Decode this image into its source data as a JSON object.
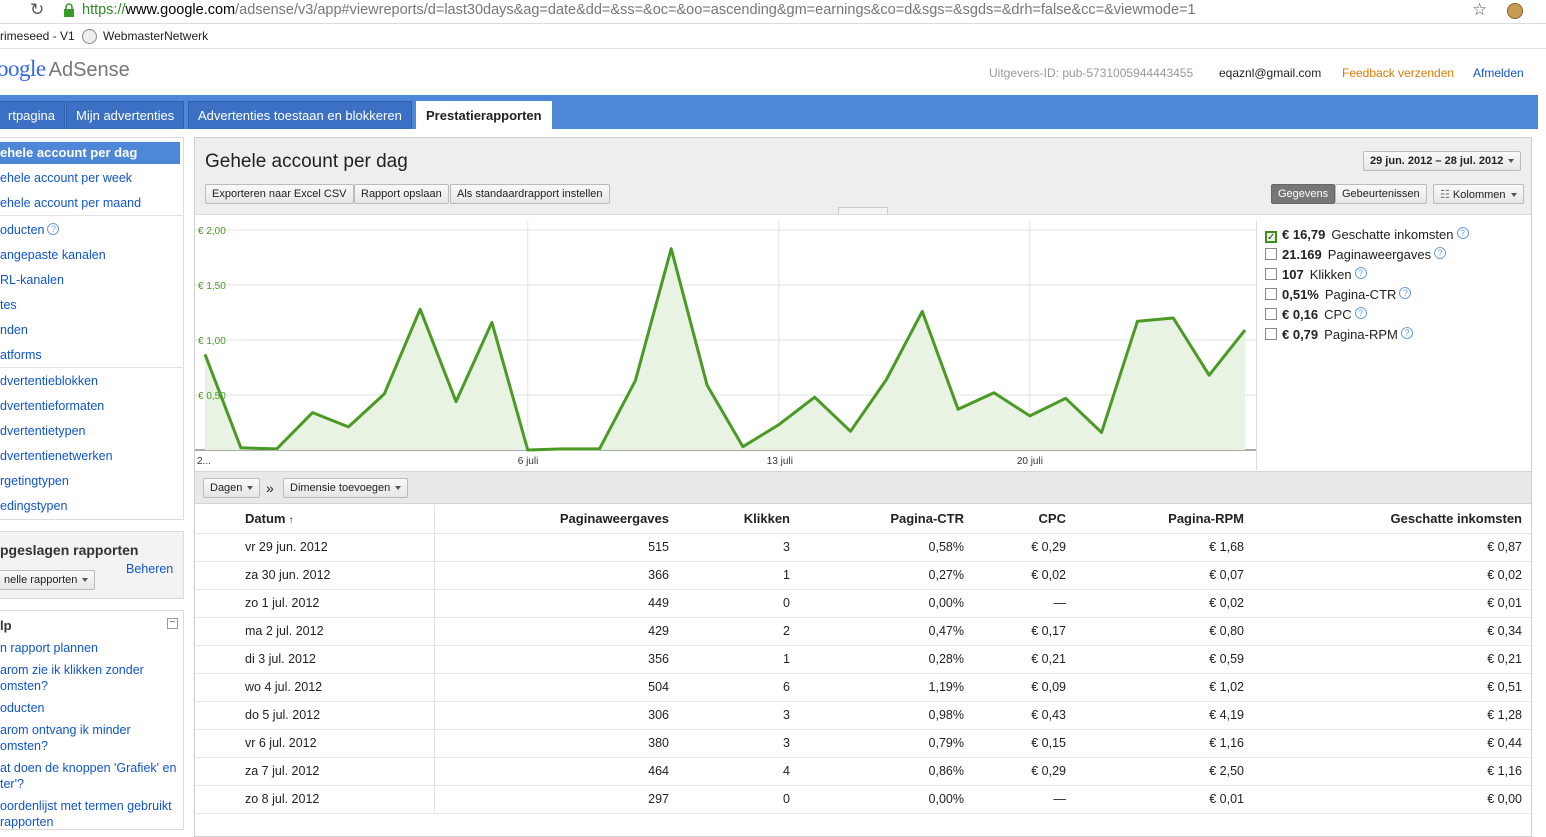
{
  "browser": {
    "url_scheme": "https://",
    "url_host": "www.google.com",
    "url_path": "/adsense/v3/app#viewreports/d=last30days&ag=date&dd=&ss=&oc=&oo=ascending&gm=earnings&co=d&sgs=&sgds=&drh=false&cc=&viewmode=1",
    "bookmarks": [
      "rimeseed - V1",
      "WebmasterNetwerk"
    ]
  },
  "header": {
    "logo_google": "oogle",
    "logo_product": "AdSense",
    "publisher_id": "Uitgevers-ID: pub-5731005944443455",
    "email": "eqaznl@gmail.com",
    "feedback": "Feedback verzenden",
    "logout": "Afmelden"
  },
  "nav": {
    "tabs": [
      "rtpagina",
      "Mijn advertenties",
      "Advertenties toestaan en blokkeren",
      "Prestatierapporten"
    ]
  },
  "sidebar": {
    "selected": "ehele account per dag",
    "items": [
      "ehele account per week",
      "ehele account per maand",
      "oducten",
      "angepaste kanalen",
      "RL-kanalen",
      "tes",
      "nden",
      "atforms",
      "dvertentieblokken",
      "dvertentieformaten",
      "dvertentietypen",
      "dvertentienetwerken",
      "rgetingtypen",
      "edingstypen"
    ],
    "saved_title": "pgeslagen rapporten",
    "saved_manage": "Beheren",
    "saved_select": "nelle rapporten",
    "help_title": "lp",
    "help_collapse": "−",
    "help_links": [
      "n rapport plannen",
      "arom zie ik klikken zonder",
      "omsten?",
      "oducten",
      "arom ontvang ik minder",
      "omsten?",
      "at doen de knoppen 'Grafiek' en",
      "ter'?",
      "oordenlijst met termen gebruikt",
      "rapporten"
    ]
  },
  "report": {
    "title": "Gehele account per dag",
    "date_range": "29 jun. 2012 – 28 jul. 2012",
    "buttons": [
      "Exporteren naar Excel CSV",
      "Rapport opslaan",
      "Als standaardrapport instellen"
    ],
    "view_toggle": [
      "Gegevens",
      "Gebeurtenissen"
    ],
    "columns_btn": "Kolommen",
    "dim_select": "Dagen",
    "dim_arrow": "»",
    "dim_add": "Dimensie toevoegen"
  },
  "legend": [
    {
      "value": "€ 16,79",
      "label": "Geschatte inkomsten",
      "checked": true
    },
    {
      "value": "21.169",
      "label": "Paginaweergaves",
      "checked": false
    },
    {
      "value": "107",
      "label": "Klikken",
      "checked": false
    },
    {
      "value": "0,51%",
      "label": "Pagina-CTR",
      "checked": false
    },
    {
      "value": "€ 0,16",
      "label": "CPC",
      "checked": false
    },
    {
      "value": "€ 0,79",
      "label": "Pagina-RPM",
      "checked": false
    }
  ],
  "chart_data": {
    "type": "area",
    "ylim": [
      0,
      2
    ],
    "y_ticks": [
      "€ 2,00",
      "€ 1,50",
      "€ 1,00",
      "€ 0,50"
    ],
    "x_ticks": [
      "2...",
      "6 juli",
      "13 juli",
      "20 juli"
    ],
    "color": "#4a9a25",
    "fill": "#e9f3e3",
    "values": [
      0.87,
      0.02,
      0.01,
      0.34,
      0.21,
      0.51,
      1.28,
      0.44,
      1.16,
      0.0,
      0.01,
      0.01,
      0.63,
      1.83,
      0.59,
      0.03,
      0.23,
      0.48,
      0.17,
      0.64,
      1.26,
      0.37,
      0.52,
      0.31,
      0.47,
      0.16,
      1.17,
      1.2,
      0.68,
      1.09
    ]
  },
  "table": {
    "headers": [
      "Datum",
      "Paginaweergaves",
      "Klikken",
      "Pagina-CTR",
      "CPC",
      "Pagina-RPM",
      "Geschatte inkomsten"
    ],
    "sort_indicator": "↑",
    "rows": [
      [
        "vr 29 jun. 2012",
        "515",
        "3",
        "0,58%",
        "€ 0,29",
        "€ 1,68",
        "€ 0,87"
      ],
      [
        "za 30 jun. 2012",
        "366",
        "1",
        "0,27%",
        "€ 0,02",
        "€ 0,07",
        "€ 0,02"
      ],
      [
        "zo 1 jul. 2012",
        "449",
        "0",
        "0,00%",
        "—",
        "€ 0,02",
        "€ 0,01"
      ],
      [
        "ma 2 jul. 2012",
        "429",
        "2",
        "0,47%",
        "€ 0,17",
        "€ 0,80",
        "€ 0,34"
      ],
      [
        "di 3 jul. 2012",
        "356",
        "1",
        "0,28%",
        "€ 0,21",
        "€ 0,59",
        "€ 0,21"
      ],
      [
        "wo 4 jul. 2012",
        "504",
        "6",
        "1,19%",
        "€ 0,09",
        "€ 1,02",
        "€ 0,51"
      ],
      [
        "do 5 jul. 2012",
        "306",
        "3",
        "0,98%",
        "€ 0,43",
        "€ 4,19",
        "€ 1,28"
      ],
      [
        "vr 6 jul. 2012",
        "380",
        "3",
        "0,79%",
        "€ 0,15",
        "€ 1,16",
        "€ 0,44"
      ],
      [
        "za 7 jul. 2012",
        "464",
        "4",
        "0,86%",
        "€ 0,29",
        "€ 2,50",
        "€ 1,16"
      ],
      [
        "zo 8 jul. 2012",
        "297",
        "0",
        "0,00%",
        "—",
        "€ 0,01",
        "€ 0,00"
      ]
    ]
  }
}
